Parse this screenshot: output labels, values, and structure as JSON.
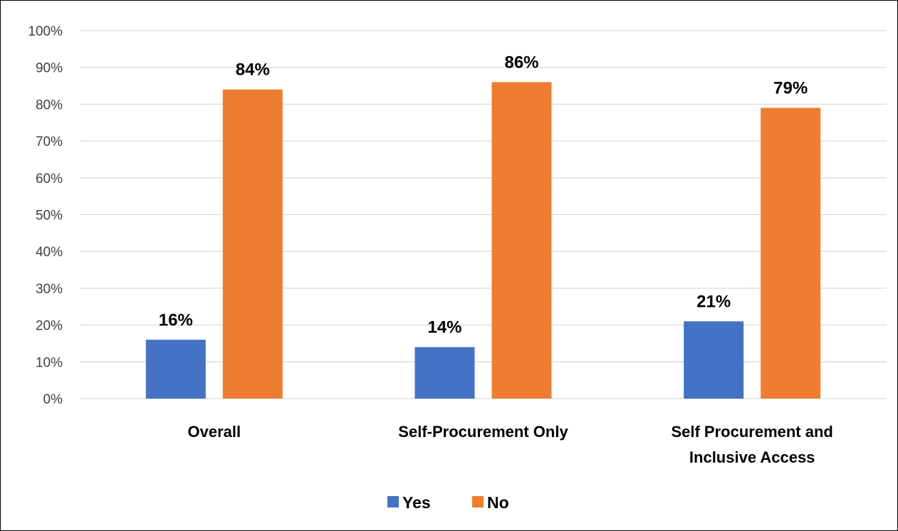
{
  "chart_data": {
    "type": "bar",
    "categories": [
      [
        "Overall"
      ],
      [
        "Self-Procurement Only"
      ],
      [
        "Self Procurement and",
        "Inclusive Access"
      ]
    ],
    "series": [
      {
        "name": "Yes",
        "color": "#4472C4",
        "values": [
          16,
          14,
          21
        ],
        "labels": [
          "16%",
          "14%",
          "21%"
        ]
      },
      {
        "name": "No",
        "color": "#ED7D31",
        "values": [
          84,
          86,
          79
        ],
        "labels": [
          "84%",
          "86%",
          "79%"
        ]
      }
    ],
    "ylim": [
      0,
      100
    ],
    "yticks": [
      0,
      10,
      20,
      30,
      40,
      50,
      60,
      70,
      80,
      90,
      100
    ],
    "ytick_labels": [
      "0%",
      "10%",
      "20%",
      "30%",
      "40%",
      "50%",
      "60%",
      "70%",
      "80%",
      "90%",
      "100%"
    ],
    "grid": true,
    "legend_position": "bottom",
    "title": "",
    "xlabel": "",
    "ylabel": ""
  }
}
